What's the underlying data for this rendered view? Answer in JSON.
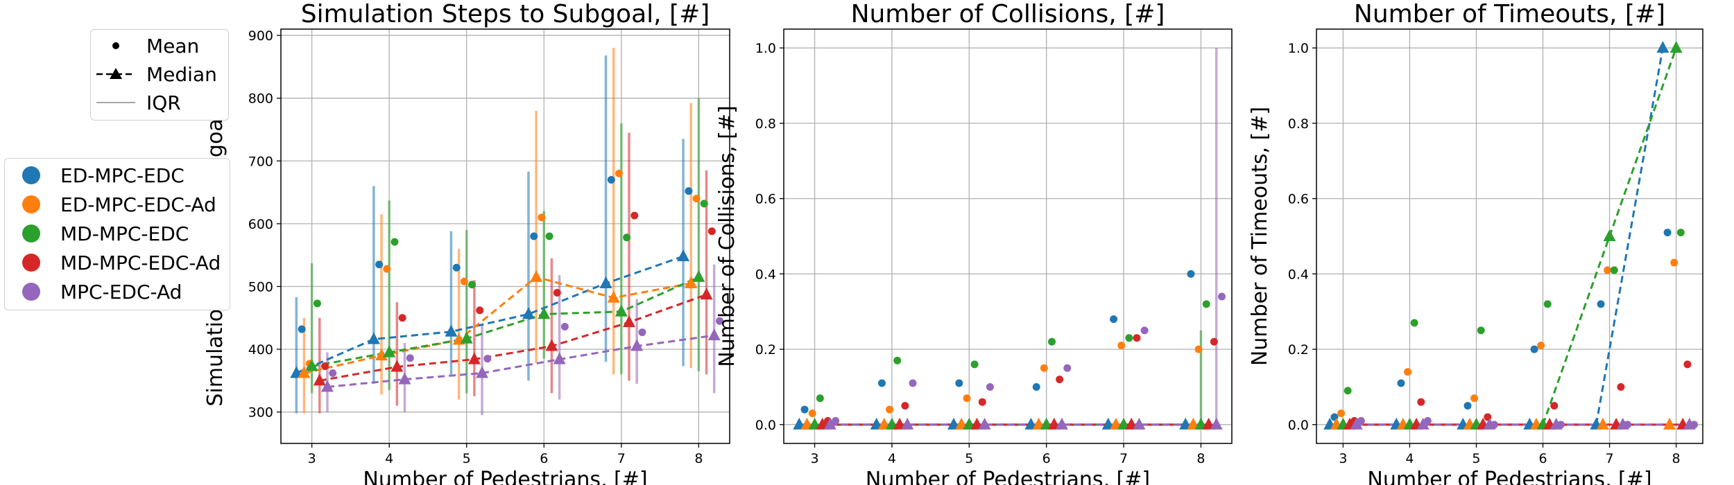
{
  "figure": {
    "stat_legend": [
      {
        "label": "Mean",
        "symbol": "dot"
      },
      {
        "label": "Median",
        "symbol": "dashed-triangle"
      },
      {
        "label": "IQR",
        "symbol": "line"
      }
    ],
    "method_legend": [
      {
        "label": "ED-MPC-EDC",
        "color": "#1f77b4"
      },
      {
        "label": "ED-MPC-EDC-Ad",
        "color": "#ff7f0e"
      },
      {
        "label": "MD-MPC-EDC",
        "color": "#2ca02c"
      },
      {
        "label": "MD-MPC-EDC-Ad",
        "color": "#d62728"
      },
      {
        "label": "MPC-EDC-Ad",
        "color": "#9467bd"
      }
    ]
  },
  "chart_data": [
    {
      "type": "scatter",
      "title": "Simulation Steps to Subgoal, [#]",
      "xlabel": "Number of Pedestrians, [#]",
      "ylabel": "Simulation Steps to Subgoal, [#]",
      "x": [
        3,
        4,
        5,
        6,
        7,
        8
      ],
      "xlim": [
        2.6,
        8.4
      ],
      "ylim": [
        250,
        910
      ],
      "yticks": [
        300,
        400,
        500,
        600,
        700,
        800,
        900
      ],
      "ytick_labels": [
        "300",
        "400",
        "500",
        "600",
        "700",
        "800",
        "900"
      ],
      "grid": true,
      "series": [
        {
          "name": "ED-MPC-EDC",
          "mean": [
            432,
            535,
            530,
            580,
            670,
            652
          ],
          "median": [
            362,
            416,
            428,
            456,
            505,
            548
          ],
          "iqr_low": [
            298,
            345,
            360,
            350,
            380,
            373
          ],
          "iqr_high": [
            483,
            660,
            588,
            683,
            868,
            735
          ]
        },
        {
          "name": "ED-MPC-EDC-Ad",
          "mean": [
            377,
            528,
            508,
            610,
            680,
            640
          ],
          "median": [
            362,
            390,
            415,
            515,
            482,
            505
          ],
          "iqr_low": [
            298,
            328,
            320,
            378,
            360,
            370
          ],
          "iqr_high": [
            450,
            615,
            560,
            780,
            880,
            792
          ]
        },
        {
          "name": "MD-MPC-EDC",
          "mean": [
            473,
            571,
            503,
            580,
            578,
            632
          ],
          "median": [
            373,
            395,
            417,
            456,
            460,
            515
          ],
          "iqr_low": [
            330,
            335,
            330,
            385,
            360,
            365
          ],
          "iqr_high": [
            537,
            637,
            590,
            620,
            760,
            800
          ]
        },
        {
          "name": "MD-MPC-EDC-Ad",
          "mean": [
            373,
            450,
            462,
            490,
            613,
            588
          ],
          "median": [
            350,
            372,
            384,
            405,
            443,
            487
          ],
          "iqr_low": [
            298,
            310,
            325,
            330,
            350,
            360
          ],
          "iqr_high": [
            450,
            475,
            510,
            545,
            745,
            685
          ]
        },
        {
          "name": "MPC-EDC-Ad",
          "mean": [
            362,
            386,
            385,
            436,
            427,
            445
          ],
          "median": [
            340,
            352,
            362,
            384,
            405,
            422
          ],
          "iqr_low": [
            300,
            300,
            295,
            320,
            345,
            330
          ],
          "iqr_high": [
            395,
            410,
            440,
            518,
            480,
            535
          ]
        }
      ]
    },
    {
      "type": "scatter",
      "title": "Number of Collisions, [#]",
      "xlabel": "Number of Pedestrians, [#]",
      "ylabel": "Number of Collisions, [#]",
      "x": [
        3,
        4,
        5,
        6,
        7,
        8
      ],
      "xlim": [
        2.6,
        8.4
      ],
      "ylim": [
        -0.05,
        1.05
      ],
      "yticks": [
        0.0,
        0.2,
        0.4,
        0.6,
        0.8,
        1.0
      ],
      "ytick_labels": [
        "0.0",
        "0.2",
        "0.4",
        "0.6",
        "0.8",
        "1.0"
      ],
      "grid": true,
      "series": [
        {
          "name": "ED-MPC-EDC",
          "mean": [
            0.04,
            0.11,
            0.11,
            0.1,
            0.28,
            0.4
          ],
          "median": [
            0,
            0,
            0,
            0,
            0,
            0
          ],
          "iqr_low": [
            0,
            0,
            0,
            0,
            0,
            0
          ],
          "iqr_high": [
            0,
            0,
            0,
            0,
            0,
            0
          ]
        },
        {
          "name": "ED-MPC-EDC-Ad",
          "mean": [
            0.03,
            0.04,
            0.07,
            0.15,
            0.21,
            0.2
          ],
          "median": [
            0,
            0,
            0,
            0,
            0,
            0
          ],
          "iqr_low": [
            0,
            0,
            0,
            0,
            0,
            0
          ],
          "iqr_high": [
            0,
            0,
            0,
            0,
            0,
            0
          ]
        },
        {
          "name": "MD-MPC-EDC",
          "mean": [
            0.07,
            0.17,
            0.16,
            0.22,
            0.23,
            0.32
          ],
          "median": [
            0,
            0,
            0,
            0,
            0,
            0
          ],
          "iqr_low": [
            0,
            0,
            0,
            0,
            0,
            0
          ],
          "iqr_high": [
            0,
            0,
            0,
            0,
            0,
            0.25
          ]
        },
        {
          "name": "MD-MPC-EDC-Ad",
          "mean": [
            0.01,
            0.05,
            0.06,
            0.12,
            0.23,
            0.22
          ],
          "median": [
            0,
            0,
            0,
            0,
            0,
            0
          ],
          "iqr_low": [
            0,
            0,
            0,
            0,
            0,
            0
          ],
          "iqr_high": [
            0,
            0,
            0,
            0,
            0,
            0
          ]
        },
        {
          "name": "MPC-EDC-Ad",
          "mean": [
            0.01,
            0.11,
            0.1,
            0.15,
            0.25,
            0.34
          ],
          "median": [
            0,
            0,
            0,
            0,
            0,
            0
          ],
          "iqr_low": [
            0,
            0,
            0,
            0,
            0,
            0
          ],
          "iqr_high": [
            0,
            0,
            0,
            0,
            0,
            1.0
          ]
        }
      ]
    },
    {
      "type": "scatter",
      "title": "Number of Timeouts, [#]",
      "xlabel": "Number of Pedestrians, [#]",
      "ylabel": "Number of Timeouts, [#]",
      "x": [
        3,
        4,
        5,
        6,
        7,
        8
      ],
      "xlim": [
        2.6,
        8.4
      ],
      "ylim": [
        -0.05,
        1.05
      ],
      "yticks": [
        0.0,
        0.2,
        0.4,
        0.6,
        0.8,
        1.0
      ],
      "ytick_labels": [
        "0.0",
        "0.2",
        "0.4",
        "0.6",
        "0.8",
        "1.0"
      ],
      "grid": true,
      "series": [
        {
          "name": "ED-MPC-EDC",
          "mean": [
            0.02,
            0.11,
            0.05,
            0.2,
            0.32,
            0.51
          ],
          "median": [
            0,
            0,
            0,
            0,
            0,
            1.0
          ],
          "iqr_low": [
            0,
            0,
            0,
            0,
            0,
            0
          ],
          "iqr_high": [
            0,
            0,
            0,
            0,
            0,
            0
          ]
        },
        {
          "name": "ED-MPC-EDC-Ad",
          "mean": [
            0.03,
            0.14,
            0.07,
            0.21,
            0.41,
            0.43
          ],
          "median": [
            0,
            0,
            0,
            0,
            0,
            0
          ],
          "iqr_low": [
            0,
            0,
            0,
            0,
            0,
            0
          ],
          "iqr_high": [
            0,
            0,
            0,
            0,
            0,
            0
          ]
        },
        {
          "name": "MD-MPC-EDC",
          "mean": [
            0.09,
            0.27,
            0.25,
            0.32,
            0.41,
            0.51
          ],
          "median": [
            0,
            0,
            0,
            0,
            0.5,
            1.0
          ],
          "iqr_low": [
            0,
            0,
            0,
            0,
            0,
            0
          ],
          "iqr_high": [
            0,
            0,
            0,
            0,
            0,
            0
          ]
        },
        {
          "name": "MD-MPC-EDC-Ad",
          "mean": [
            0.01,
            0.06,
            0.02,
            0.05,
            0.1,
            0.16
          ],
          "median": [
            0,
            0,
            0,
            0,
            0,
            0
          ],
          "iqr_low": [
            0,
            0,
            0,
            0,
            0,
            0
          ],
          "iqr_high": [
            0,
            0,
            0,
            0,
            0,
            0
          ]
        },
        {
          "name": "MPC-EDC-Ad",
          "mean": [
            0.01,
            0.01,
            0.0,
            0.0,
            0.0,
            0.0
          ],
          "median": [
            0,
            0,
            0,
            0,
            0,
            0
          ],
          "iqr_low": [
            0,
            0,
            0,
            0,
            0,
            0
          ],
          "iqr_high": [
            0,
            0,
            0,
            0,
            0,
            0
          ]
        }
      ]
    }
  ]
}
